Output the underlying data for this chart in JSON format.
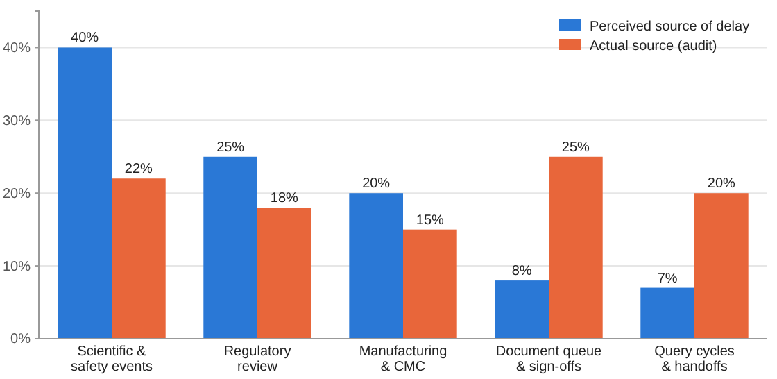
{
  "chart_data": {
    "type": "bar",
    "categories": [
      "Scientific &\nsafety events",
      "Regulatory\nreview",
      "Manufacturing\n& CMC",
      "Document queue\n& sign-offs",
      "Query cycles\n& handoffs"
    ],
    "series": [
      {
        "name": "Perceived source of delay",
        "color": "#2a78d6",
        "values": [
          40,
          25,
          20,
          8,
          7
        ],
        "value_labels": [
          "40%",
          "25%",
          "20%",
          "8%",
          "7%"
        ]
      },
      {
        "name": "Actual source (audit)",
        "color": "#e8663a",
        "values": [
          22,
          18,
          15,
          25,
          20
        ],
        "value_labels": [
          "22%",
          "18%",
          "15%",
          "25%",
          "20%"
        ]
      }
    ],
    "ylim": [
      0,
      45
    ],
    "yticks": [
      {
        "value": 0,
        "label": "0%"
      },
      {
        "value": 10,
        "label": "10%"
      },
      {
        "value": 20,
        "label": "20%"
      },
      {
        "value": 30,
        "label": "30%"
      },
      {
        "value": 40,
        "label": "40%"
      }
    ],
    "grid": "y",
    "legend": "top right"
  }
}
